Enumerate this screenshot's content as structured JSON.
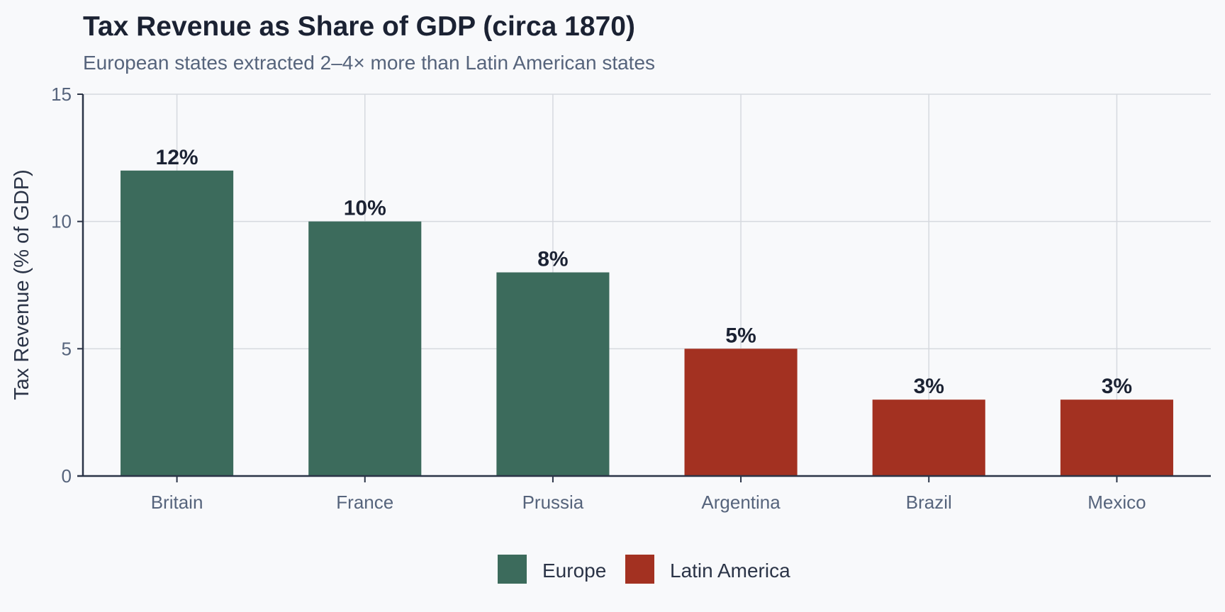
{
  "chart_data": {
    "type": "bar",
    "title": "Tax Revenue as Share of GDP (circa 1870)",
    "subtitle": "European states extracted 2–4× more than Latin American states",
    "xlabel": "",
    "ylabel": "Tax Revenue (% of GDP)",
    "ylim": [
      0,
      15
    ],
    "yticks": [
      "0",
      "5",
      "10",
      "15"
    ],
    "ytick_values": [
      0,
      5,
      10,
      15
    ],
    "grid": true,
    "categories": [
      "Britain",
      "France",
      "Prussia",
      "Argentina",
      "Brazil",
      "Mexico"
    ],
    "values": [
      12,
      10,
      8,
      5,
      3,
      3
    ],
    "data_labels": [
      "12%",
      "10%",
      "8%",
      "5%",
      "3%",
      "3%"
    ],
    "groups": [
      "Europe",
      "Europe",
      "Europe",
      "Latin America",
      "Latin America",
      "Latin America"
    ],
    "legend": {
      "position": "bottom",
      "entries": [
        {
          "label": "Europe",
          "color": "#3c6b5c"
        },
        {
          "label": "Latin America",
          "color": "#a33121"
        }
      ]
    }
  }
}
